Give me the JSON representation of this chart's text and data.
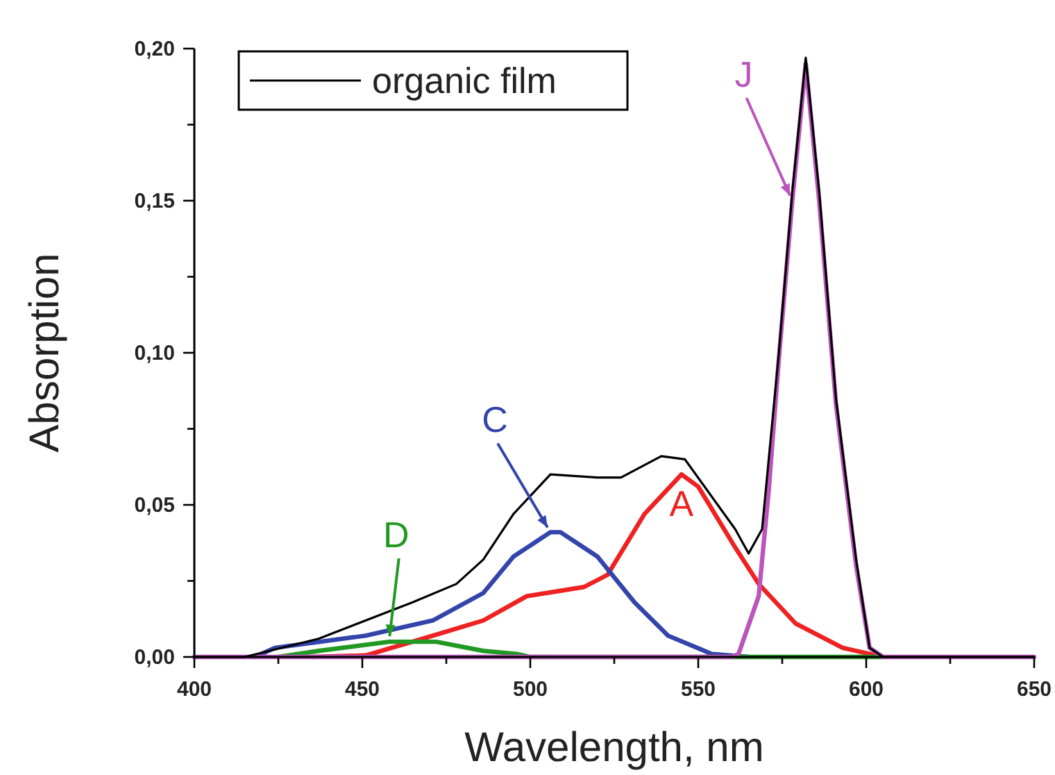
{
  "chart_data": {
    "type": "line",
    "xlabel": "Wavelength, nm",
    "ylabel": "Absorption",
    "xlim": [
      400,
      650
    ],
    "ylim": [
      0,
      0.2
    ],
    "xticks": [
      400,
      {
        "value": 425,
        "label": null
      },
      450,
      {
        "value": 475,
        "label": null
      },
      500,
      {
        "value": 525,
        "label": null
      },
      550,
      {
        "value": 575,
        "label": null
      },
      600,
      {
        "value": 625,
        "label": null
      },
      650
    ],
    "yticks": [
      {
        "value": 0,
        "label": "0,00"
      },
      {
        "value": 0.025,
        "label": null
      },
      {
        "value": 0.05,
        "label": "0,05"
      },
      {
        "value": 0.075,
        "label": null
      },
      {
        "value": 0.1,
        "label": "0,10"
      },
      {
        "value": 0.125,
        "label": null
      },
      {
        "value": 0.15,
        "label": "0,15"
      },
      {
        "value": 0.175,
        "label": null
      },
      {
        "value": 0.2,
        "label": "0,20"
      }
    ],
    "grid": false,
    "legend": "top left",
    "marker": "none",
    "line_style": "solid",
    "series": [
      {
        "name": "organic film",
        "color": "#000000",
        "x": [
          400,
          415,
          437,
          465,
          478,
          486,
          495,
          506,
          520,
          527,
          539,
          546,
          561,
          565,
          569,
          574,
          578,
          582,
          586,
          591,
          597,
          601,
          605,
          650
        ],
        "values": [
          0,
          0,
          0.006,
          0.018,
          0.024,
          0.032,
          0.047,
          0.06,
          0.059,
          0.059,
          0.066,
          0.065,
          0.042,
          0.034,
          0.042,
          0.1,
          0.153,
          0.197,
          0.153,
          0.085,
          0.032,
          0.003,
          0,
          0
        ]
      },
      {
        "name": "A",
        "color": "#ee2222",
        "x": [
          435,
          451,
          471,
          486,
          499,
          516,
          523,
          534,
          545,
          550,
          561,
          568,
          579,
          593,
          605
        ],
        "values": [
          0,
          0.0005,
          0.007,
          0.012,
          0.02,
          0.023,
          0.027,
          0.047,
          0.06,
          0.056,
          0.036,
          0.024,
          0.011,
          0.003,
          0
        ]
      },
      {
        "name": "C",
        "color": "#3344aa",
        "x": [
          418,
          424,
          451,
          471,
          486,
          495,
          506,
          509,
          520,
          531,
          541,
          554,
          565
        ],
        "values": [
          0,
          0.003,
          0.007,
          0.012,
          0.021,
          0.033,
          0.041,
          0.041,
          0.033,
          0.018,
          0.007,
          0.001,
          0
        ]
      },
      {
        "name": "D",
        "color": "#229922",
        "x": [
          425,
          437,
          458,
          472,
          486,
          496,
          500,
          605
        ],
        "values": [
          0,
          0.002,
          0.005,
          0.005,
          0.002,
          0.001,
          0,
          0
        ]
      },
      {
        "name": "J",
        "color": "#bb55bb",
        "x": [
          400,
          560,
          562,
          568,
          571,
          574,
          578,
          582,
          586,
          591,
          597,
          601,
          605,
          650
        ],
        "values": [
          0,
          0,
          0.001,
          0.02,
          0.055,
          0.098,
          0.15,
          0.195,
          0.15,
          0.083,
          0.03,
          0.003,
          0,
          0
        ]
      }
    ]
  }
}
